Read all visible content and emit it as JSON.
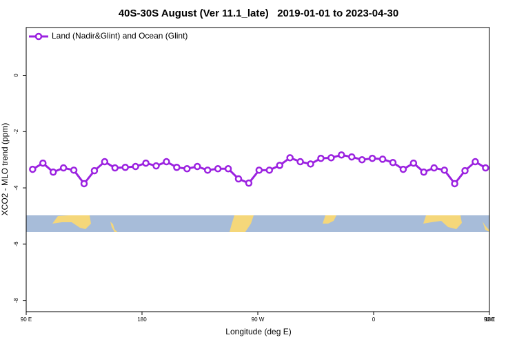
{
  "chart_data": {
    "type": "line",
    "title": "40S-30S August (Ver 11.1_late)   2019-01-01 to 2023-04-30",
    "x_label": "Longitude (deg E)",
    "y_label": "XCO2 - MLO trend (ppm)",
    "x": [
      95,
      103,
      111,
      119,
      127,
      135,
      143,
      151,
      159,
      167,
      175,
      183,
      191,
      199,
      207,
      215,
      223,
      231,
      239,
      247,
      255,
      263,
      271,
      279,
      287,
      295,
      303,
      311,
      319,
      327,
      335,
      343,
      351,
      359,
      367,
      375,
      383,
      391,
      399,
      407,
      415,
      423,
      431,
      439,
      447
    ],
    "series": [
      {
        "name": "Land (Nadir&Glint) and Ocean (Glint)",
        "color": "#9b22e0",
        "values": [
          -3.34,
          -3.12,
          -3.44,
          -3.29,
          -3.37,
          -3.85,
          -3.39,
          -3.07,
          -3.29,
          -3.27,
          -3.24,
          -3.12,
          -3.22,
          -3.07,
          -3.27,
          -3.32,
          -3.24,
          -3.37,
          -3.32,
          -3.32,
          -3.68,
          -3.83,
          -3.37,
          -3.37,
          -3.2,
          -2.93,
          -3.07,
          -3.15,
          -2.95,
          -2.93,
          -2.83,
          -2.9,
          -3.0,
          -2.95,
          -2.98,
          -3.1,
          -3.34,
          -3.12,
          -3.44,
          -3.29,
          -3.37,
          -3.85,
          -3.39,
          -3.07,
          -3.29
        ]
      }
    ],
    "xlim": [
      90,
      450
    ],
    "xticks": [
      {
        "value": 90,
        "label": "90 E"
      },
      180,
      {
        "value": 270,
        "label": "90 W"
      },
      {
        "value": 360,
        "label": "0"
      },
      {
        "value": 450,
        "label": "90 E"
      },
      {
        "value": 540,
        "label": "180"
      }
    ],
    "ylim": [
      -8.4,
      1.7
    ],
    "yticks": [
      0,
      -2,
      -4,
      -6,
      -8
    ],
    "legend": "top-left"
  }
}
